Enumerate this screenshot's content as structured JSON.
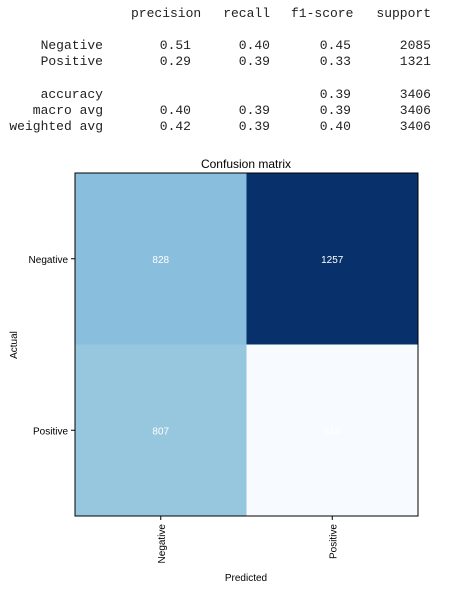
{
  "report": {
    "headers": [
      "precision",
      "recall",
      "f1-score",
      "support"
    ],
    "rows": [
      {
        "label": "Negative",
        "precision": "0.51",
        "recall": "0.40",
        "f1": "0.45",
        "support": "2085"
      },
      {
        "label": "Positive",
        "precision": "0.29",
        "recall": "0.39",
        "f1": "0.33",
        "support": "1321"
      },
      {
        "label": "accuracy",
        "precision": "",
        "recall": "",
        "f1": "0.39",
        "support": "3406"
      },
      {
        "label": "macro avg",
        "precision": "0.40",
        "recall": "0.39",
        "f1": "0.39",
        "support": "3406"
      },
      {
        "label": "weighted avg",
        "precision": "0.42",
        "recall": "0.39",
        "f1": "0.40",
        "support": "3406"
      }
    ]
  },
  "chart_data": {
    "type": "heatmap",
    "title": "Confusion matrix",
    "xlabel": "Predicted",
    "ylabel": "Actual",
    "x_categories": [
      "Negative",
      "Positive"
    ],
    "y_categories": [
      "Negative",
      "Positive"
    ],
    "values": [
      [
        828,
        1257
      ],
      [
        807,
        514
      ]
    ],
    "colormap": "Blues",
    "cell_colors": [
      [
        "#89bedc",
        "#08306b"
      ],
      [
        "#97c6df",
        "#f7fbff"
      ]
    ],
    "value_text_color": "#ffffff"
  }
}
